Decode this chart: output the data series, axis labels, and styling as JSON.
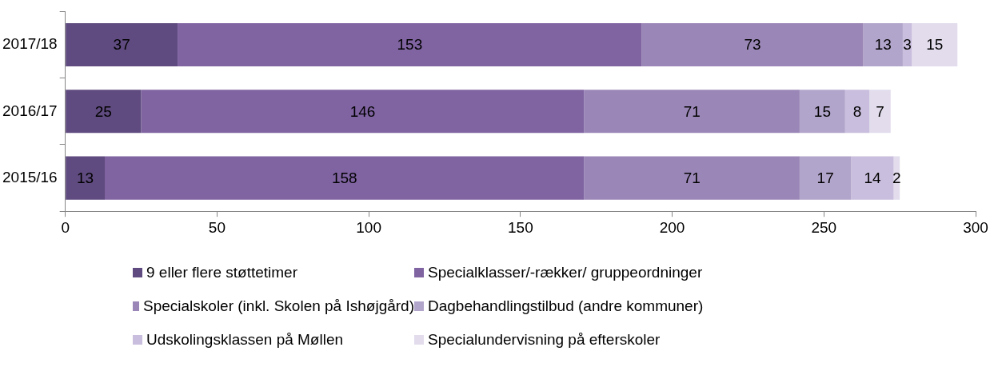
{
  "chart_data": {
    "type": "bar",
    "orientation": "horizontal",
    "stacked": true,
    "categories": [
      "2017/18",
      "2016/17",
      "2015/16"
    ],
    "series": [
      {
        "name": "9 eller flere støttetimer",
        "color": "#5f4b7f",
        "values": [
          37,
          25,
          13
        ]
      },
      {
        "name": "Specialklasser/-rækker/ gruppeordninger",
        "color": "#8064a2",
        "values": [
          153,
          146,
          158
        ]
      },
      {
        "name": "Specialskoler (inkl. Skolen på Ishøjgård)",
        "color": "#9b87b7",
        "values": [
          73,
          71,
          71
        ]
      },
      {
        "name": "Dagbehandlingstilbud (andre kommuner)",
        "color": "#b2a5cb",
        "values": [
          13,
          15,
          17
        ]
      },
      {
        "name": "Udskolingsklassen på Møllen",
        "color": "#c9bedd",
        "values": [
          3,
          8,
          14
        ]
      },
      {
        "name": "Specialundervisning på efterskoler",
        "color": "#e2dcec",
        "values": [
          15,
          7,
          2
        ]
      }
    ],
    "xlim": [
      0,
      300
    ],
    "xticks": [
      0,
      50,
      100,
      150,
      200,
      250,
      300
    ],
    "grid": false,
    "legend": "bottom",
    "data_labels": true
  }
}
